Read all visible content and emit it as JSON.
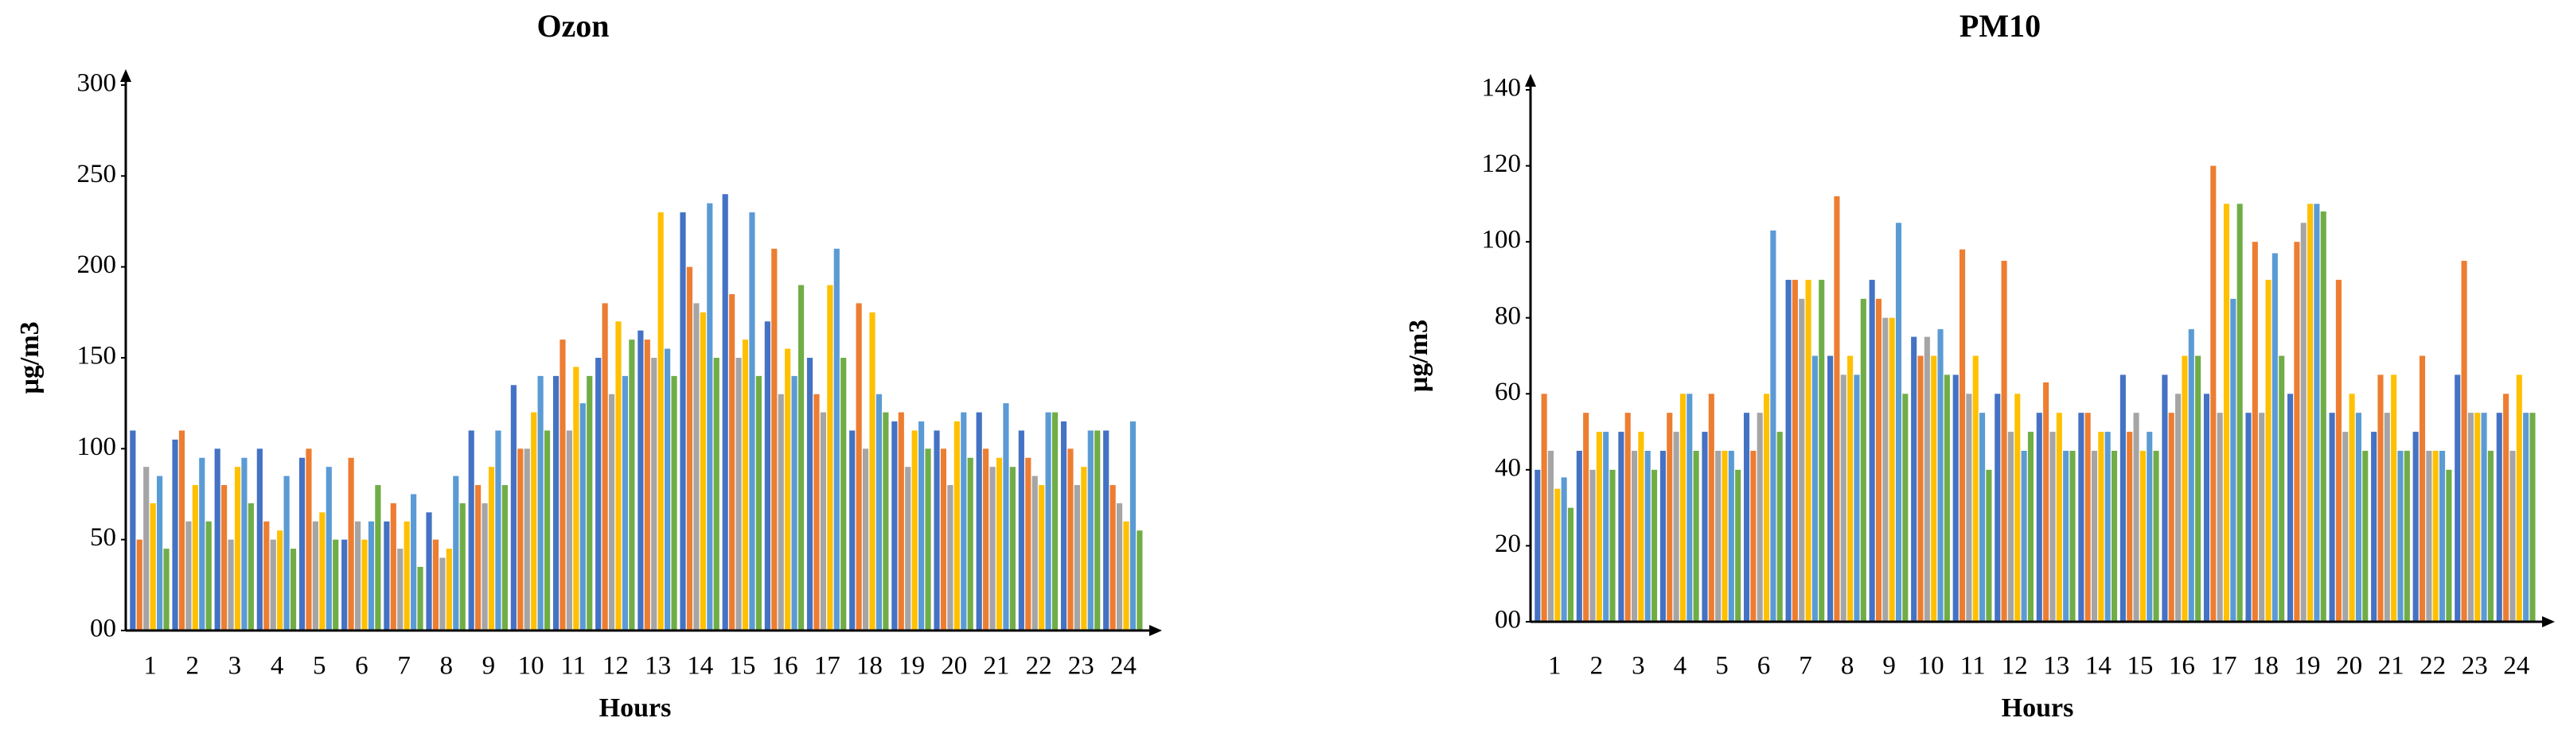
{
  "chart_data": [
    {
      "type": "bar",
      "title": "Ozon",
      "x_label": "Hours",
      "y_label": "µg/m3",
      "categories": [
        "1",
        "2",
        "3",
        "4",
        "5",
        "6",
        "7",
        "8",
        "9",
        "10",
        "11",
        "12",
        "13",
        "14",
        "15",
        "16",
        "17",
        "18",
        "19",
        "20",
        "21",
        "22",
        "23",
        "24"
      ],
      "series": [
        {
          "color": "#4472c4",
          "values": [
            110,
            105,
            100,
            100,
            95,
            50,
            60,
            65,
            110,
            135,
            140,
            150,
            165,
            230,
            240,
            170,
            150,
            110,
            115,
            110,
            120,
            110,
            115,
            110
          ]
        },
        {
          "color": "#ed7d31",
          "values": [
            50,
            110,
            80,
            60,
            100,
            95,
            70,
            50,
            80,
            100,
            160,
            180,
            160,
            200,
            185,
            210,
            130,
            180,
            120,
            100,
            100,
            95,
            100,
            80
          ]
        },
        {
          "color": "#a5a5a5",
          "values": [
            90,
            60,
            50,
            50,
            60,
            60,
            45,
            40,
            70,
            100,
            110,
            130,
            150,
            180,
            150,
            130,
            120,
            100,
            90,
            80,
            90,
            85,
            80,
            70
          ]
        },
        {
          "color": "#ffc000",
          "values": [
            70,
            80,
            90,
            55,
            65,
            50,
            60,
            45,
            90,
            120,
            145,
            170,
            230,
            175,
            160,
            155,
            190,
            175,
            110,
            115,
            95,
            80,
            90,
            60
          ]
        },
        {
          "color": "#5b9bd5",
          "values": [
            85,
            95,
            95,
            85,
            90,
            60,
            75,
            85,
            110,
            140,
            125,
            140,
            155,
            235,
            230,
            140,
            210,
            130,
            115,
            120,
            125,
            120,
            110,
            115
          ]
        },
        {
          "color": "#70ad47",
          "values": [
            45,
            60,
            70,
            45,
            50,
            80,
            35,
            70,
            80,
            110,
            140,
            160,
            140,
            150,
            140,
            190,
            150,
            120,
            100,
            95,
            90,
            120,
            110,
            55
          ]
        }
      ],
      "ylim": [
        0,
        300
      ],
      "yticks": [
        {
          "value": 0,
          "label": "00"
        },
        50,
        100,
        150,
        200,
        250,
        300
      ]
    },
    {
      "type": "bar",
      "title": "PM10",
      "x_label": "Hours",
      "y_label": "µg/m3",
      "categories": [
        "1",
        "2",
        "3",
        "4",
        "5",
        "6",
        "7",
        "8",
        "9",
        "10",
        "11",
        "12",
        "13",
        "14",
        "15",
        "16",
        "17",
        "18",
        "19",
        "20",
        "21",
        "22",
        "23",
        "24"
      ],
      "series": [
        {
          "color": "#4472c4",
          "values": [
            40,
            45,
            50,
            45,
            50,
            55,
            90,
            70,
            90,
            75,
            65,
            60,
            55,
            55,
            65,
            65,
            60,
            55,
            60,
            55,
            50,
            50,
            65,
            55
          ]
        },
        {
          "color": "#ed7d31",
          "values": [
            60,
            55,
            55,
            55,
            60,
            45,
            90,
            112,
            85,
            70,
            98,
            95,
            63,
            55,
            50,
            55,
            120,
            100,
            100,
            90,
            65,
            70,
            95,
            60
          ]
        },
        {
          "color": "#a5a5a5",
          "values": [
            45,
            40,
            45,
            50,
            45,
            55,
            85,
            65,
            80,
            75,
            60,
            50,
            50,
            45,
            55,
            60,
            55,
            55,
            105,
            50,
            55,
            45,
            55,
            45
          ]
        },
        {
          "color": "#ffc000",
          "values": [
            35,
            50,
            50,
            60,
            45,
            60,
            90,
            70,
            80,
            70,
            70,
            60,
            55,
            50,
            45,
            70,
            110,
            90,
            110,
            60,
            65,
            45,
            55,
            65
          ]
        },
        {
          "color": "#5b9bd5",
          "values": [
            38,
            50,
            45,
            60,
            45,
            103,
            70,
            65,
            105,
            77,
            55,
            45,
            45,
            50,
            50,
            77,
            85,
            97,
            110,
            55,
            45,
            45,
            55,
            55
          ]
        },
        {
          "color": "#70ad47",
          "values": [
            30,
            40,
            40,
            45,
            40,
            50,
            90,
            85,
            60,
            65,
            40,
            50,
            45,
            45,
            45,
            70,
            110,
            70,
            108,
            45,
            45,
            40,
            45,
            55
          ]
        }
      ],
      "ylim": [
        0,
        140
      ],
      "yticks": [
        {
          "value": 0,
          "label": "00"
        },
        20,
        40,
        60,
        80,
        100,
        120,
        140
      ]
    }
  ]
}
